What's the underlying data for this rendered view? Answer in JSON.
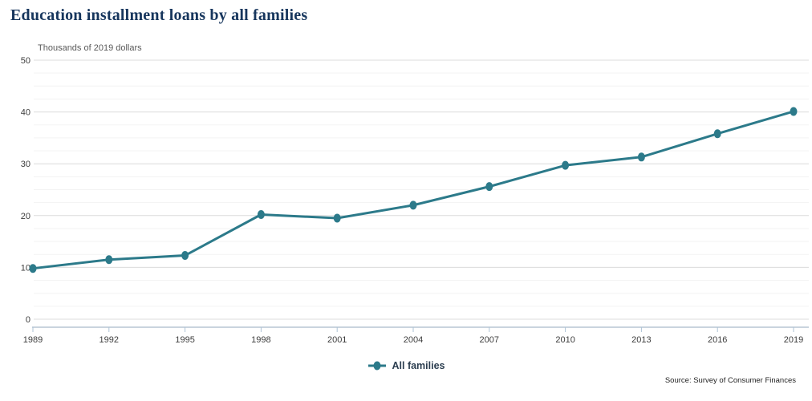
{
  "source": "Source: Survey of Consumer Finances",
  "colors": {
    "line": "#2c7a8a",
    "marker": "#2c7a8a",
    "title_text": "#17365d",
    "grid_major": "#dcdcdc",
    "grid_minor": "#f3f3f3",
    "axis_line": "#93a9bd",
    "tick_mark": "#aec3d6",
    "axis_label": "#3d3d3d"
  },
  "chart_data": {
    "type": "line",
    "title": "Education installment loans by all families",
    "ylabel": "Thousands of 2019 dollars",
    "xlabel": "",
    "x": [
      "1989",
      "1992",
      "1995",
      "1998",
      "2001",
      "2004",
      "2007",
      "2010",
      "2013",
      "2016",
      "2019"
    ],
    "series": [
      {
        "name": "All families",
        "values": [
          9.8,
          11.5,
          12.3,
          20.2,
          19.5,
          22.0,
          25.6,
          29.7,
          31.3,
          35.8,
          40.1
        ]
      }
    ],
    "ylim": [
      0,
      50
    ],
    "yticks": [
      0,
      10,
      20,
      30,
      40,
      50
    ],
    "y_minor_step": 2.5,
    "grid": "horizontal",
    "legend_position": "bottom"
  }
}
